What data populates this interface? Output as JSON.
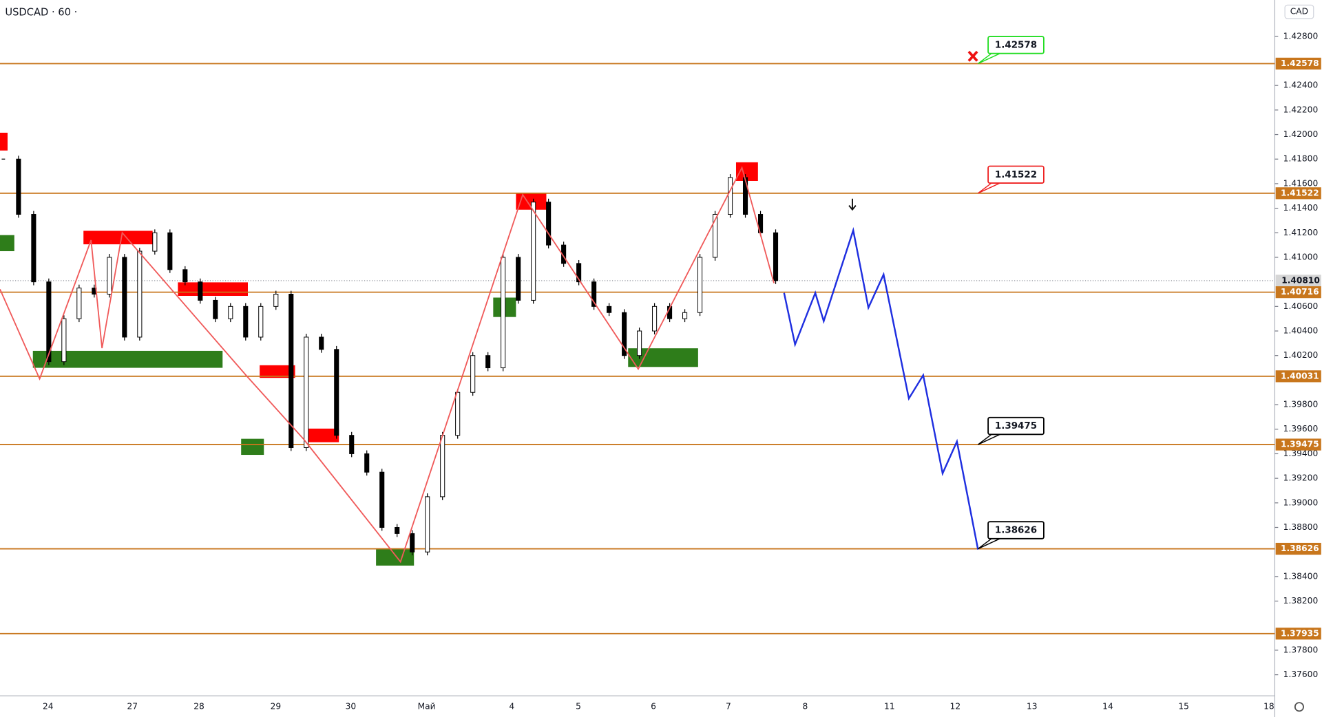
{
  "chart_data": {
    "type": "candlestick",
    "title": "USDCAD · 60 ·",
    "currency": "CAD",
    "ylim": [
      1.37428,
      1.43096
    ],
    "yticks": [
      {
        "value": 1.428,
        "label": "1.42800"
      },
      {
        "value": 1.424,
        "label": "1.42400"
      },
      {
        "value": 1.422,
        "label": "1.42200"
      },
      {
        "value": 1.42,
        "label": "1.42000"
      },
      {
        "value": 1.418,
        "label": "1.41800"
      },
      {
        "value": 1.416,
        "label": "1.41600"
      },
      {
        "value": 1.414,
        "label": "1.41400"
      },
      {
        "value": 1.412,
        "label": "1.41200"
      },
      {
        "value": 1.41,
        "label": "1.41000"
      },
      {
        "value": 1.406,
        "label": "1.40600"
      },
      {
        "value": 1.404,
        "label": "1.40400"
      },
      {
        "value": 1.402,
        "label": "1.40200"
      },
      {
        "value": 1.398,
        "label": "1.39800"
      },
      {
        "value": 1.396,
        "label": "1.39600"
      },
      {
        "value": 1.394,
        "label": "1.39400"
      },
      {
        "value": 1.392,
        "label": "1.39200"
      },
      {
        "value": 1.39,
        "label": "1.39000"
      },
      {
        "value": 1.388,
        "label": "1.38800"
      },
      {
        "value": 1.384,
        "label": "1.38400"
      },
      {
        "value": 1.382,
        "label": "1.38200"
      },
      {
        "value": 1.378,
        "label": "1.37800"
      },
      {
        "value": 1.376,
        "label": "1.37600"
      }
    ],
    "categories": [
      "24",
      "27",
      "28",
      "29",
      "30",
      "Май",
      "4",
      "5",
      "6",
      "7",
      "8",
      "11",
      "12",
      "13",
      "14",
      "15",
      "18"
    ],
    "price": {
      "values": [
        1.418,
        1.4135,
        1.408,
        1.4015,
        1.405,
        1.4075,
        1.407,
        1.41,
        1.4035,
        1.4105,
        1.412,
        1.409,
        1.408,
        1.4065,
        1.405,
        1.406,
        1.4035,
        1.406,
        1.407,
        1.3945,
        1.4035,
        1.4025,
        1.3955,
        1.394,
        1.3925,
        1.388,
        1.3875,
        1.386,
        1.3905,
        1.3955,
        1.399,
        1.402,
        1.401,
        1.41,
        1.4065,
        1.4145,
        1.411,
        1.4095,
        1.408,
        1.406,
        1.4055,
        1.402,
        1.404,
        1.406,
        1.405,
        1.4055,
        1.41,
        1.4135,
        1.4165,
        1.4135,
        1.412,
        1.4081
      ]
    },
    "current_price": {
      "value": 1.4081,
      "label": "1.40810"
    },
    "levels": {
      "color": "#c8761c",
      "values": [
        1.42578,
        1.41522,
        1.40716,
        1.40031,
        1.39475,
        1.38626,
        1.37935
      ]
    },
    "zigzag": {
      "color": "#f05a5a",
      "values": [
        1.4074,
        1.4001,
        1.4114,
        1.4026,
        1.412,
        1.4003,
        1.3952,
        1.3852,
        1.4151,
        1.4009,
        1.4173,
        1.4079
      ]
    },
    "forecast": {
      "color": "#1f2fe0",
      "values": [
        1.4071,
        1.4029,
        1.4071,
        1.4048,
        1.4122,
        1.4059,
        1.4086,
        1.3985,
        1.4004,
        1.3924,
        1.395,
        1.3862
      ]
    },
    "supply_zones": {
      "color": "#ff0000",
      "zones": [
        {
          "top": 1.42015,
          "bottom": 1.4187
        },
        {
          "top": 1.41216,
          "bottom": 1.41106
        },
        {
          "top": 1.40796,
          "bottom": 1.40686
        },
        {
          "top": 1.40121,
          "bottom": 1.40018
        },
        {
          "top": 1.39605,
          "bottom": 1.39494
        },
        {
          "top": 1.41519,
          "bottom": 1.41388
        },
        {
          "top": 1.41774,
          "bottom": 1.41622
        }
      ]
    },
    "demand_zones": {
      "color": "#2e7d1a",
      "zones": [
        {
          "top": 1.41181,
          "bottom": 1.4105
        },
        {
          "top": 1.40238,
          "bottom": 1.401
        },
        {
          "top": 1.39522,
          "bottom": 1.39391
        },
        {
          "top": 1.40672,
          "bottom": 1.40514
        },
        {
          "top": 1.40259,
          "bottom": 1.40107
        },
        {
          "top": 1.38626,
          "bottom": 1.38489
        }
      ]
    },
    "callouts": [
      {
        "value": 1.42578,
        "color": "#22dd22"
      },
      {
        "value": 1.41522,
        "color": "#ee2222"
      },
      {
        "value": 1.39475,
        "color": "#000000"
      },
      {
        "value": 1.38626,
        "color": "#000000"
      }
    ]
  }
}
